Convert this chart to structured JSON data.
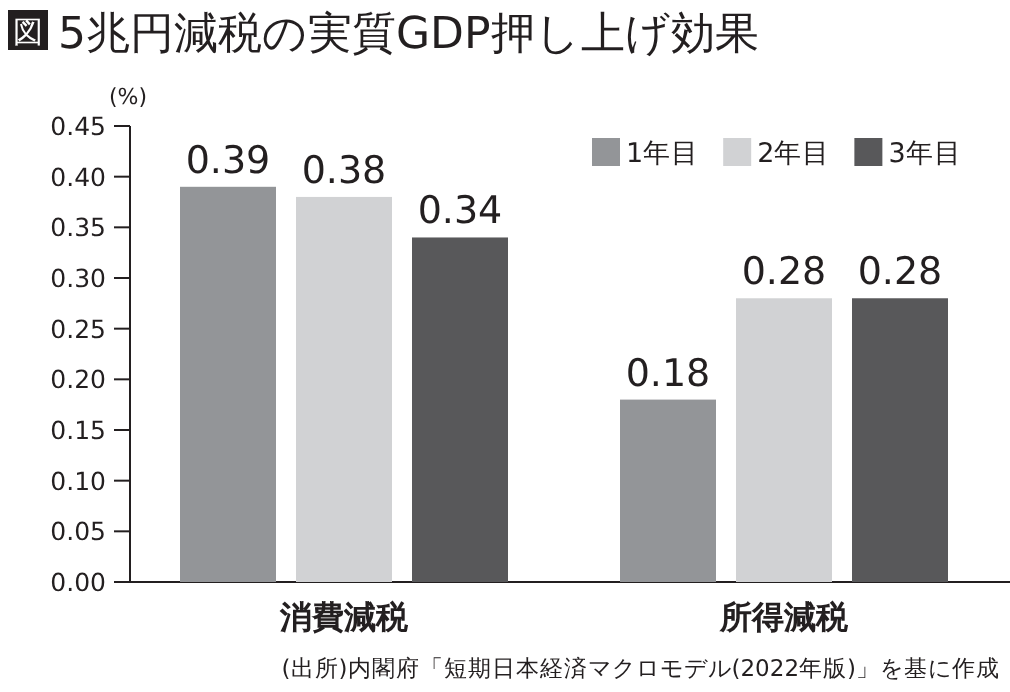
{
  "chart_data": {
    "type": "bar",
    "title": "5兆円減税の実質GDP押し上げ効果",
    "ylabel": "(%)",
    "categories": [
      "消費減税",
      "所得減税"
    ],
    "series": [
      {
        "name": "1年目",
        "color": "#939598",
        "values": [
          0.39,
          0.18
        ]
      },
      {
        "name": "2年目",
        "color": "#d1d2d4",
        "values": [
          0.38,
          0.28
        ]
      },
      {
        "name": "3年目",
        "color": "#58585a",
        "values": [
          0.34,
          0.28
        ]
      }
    ],
    "ylim": [
      0,
      0.45
    ],
    "yticks": [
      {
        "value": 0,
        "label": "0.00"
      },
      {
        "value": 0.05,
        "label": "0.05"
      },
      {
        "value": 0.1,
        "label": "0.10"
      },
      {
        "value": 0.15,
        "label": "0.15"
      },
      {
        "value": 0.2,
        "label": "0.20"
      },
      {
        "value": 0.25,
        "label": "0.25"
      },
      {
        "value": 0.3,
        "label": "0.30"
      },
      {
        "value": 0.35,
        "label": "0.35"
      },
      {
        "value": 0.4,
        "label": "0.40"
      },
      {
        "value": 0.45,
        "label": "0.45"
      }
    ],
    "data_labels": true,
    "legend": "top right",
    "grid": false,
    "annotations": [
      "図",
      "(出所)内閣府「短期日本経済マクロモデル(2022年版)」を基に作成"
    ]
  }
}
